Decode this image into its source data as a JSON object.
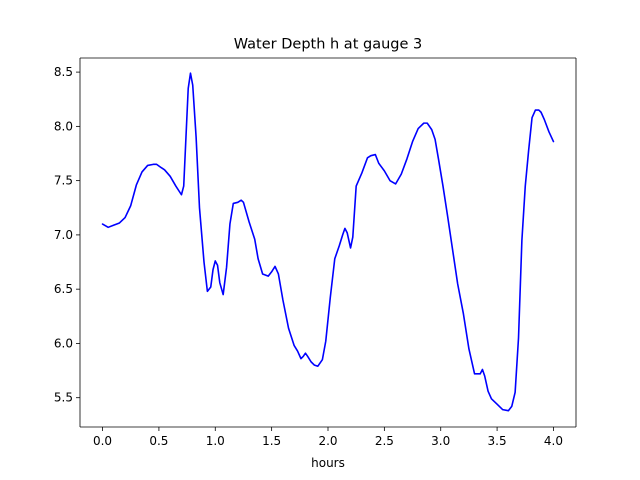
{
  "chart_data": {
    "type": "line",
    "title": "Water Depth h at gauge 3",
    "xlabel": "hours",
    "ylabel": "",
    "xlim": [
      -0.2,
      4.2
    ],
    "ylim": [
      5.23,
      8.63
    ],
    "x_ticks": [
      0.0,
      0.5,
      1.0,
      1.5,
      2.0,
      2.5,
      3.0,
      3.5,
      4.0
    ],
    "x_tick_labels": [
      "0.0",
      "0.5",
      "1.0",
      "1.5",
      "2.0",
      "2.5",
      "3.0",
      "3.5",
      "4.0"
    ],
    "y_ticks": [
      5.5,
      6.0,
      6.5,
      7.0,
      7.5,
      8.0,
      8.5
    ],
    "y_tick_labels": [
      "5.5",
      "6.0",
      "6.5",
      "7.0",
      "7.5",
      "8.0",
      "8.5"
    ],
    "grid": false,
    "legend": "none",
    "series": [
      {
        "color": "#0000ff",
        "x": [
          0.0,
          0.05,
          0.1,
          0.15,
          0.2,
          0.25,
          0.3,
          0.35,
          0.4,
          0.45,
          0.48,
          0.52,
          0.55,
          0.6,
          0.65,
          0.7,
          0.72,
          0.74,
          0.76,
          0.78,
          0.8,
          0.83,
          0.86,
          0.9,
          0.93,
          0.96,
          0.98,
          1.0,
          1.02,
          1.04,
          1.07,
          1.1,
          1.13,
          1.16,
          1.2,
          1.23,
          1.25,
          1.3,
          1.35,
          1.38,
          1.42,
          1.47,
          1.5,
          1.53,
          1.56,
          1.6,
          1.65,
          1.7,
          1.73,
          1.76,
          1.78,
          1.8,
          1.82,
          1.85,
          1.88,
          1.91,
          1.95,
          1.98,
          2.02,
          2.06,
          2.1,
          2.13,
          2.15,
          2.17,
          2.2,
          2.22,
          2.25,
          2.3,
          2.35,
          2.38,
          2.42,
          2.45,
          2.5,
          2.55,
          2.6,
          2.65,
          2.7,
          2.75,
          2.8,
          2.85,
          2.88,
          2.92,
          2.95,
          2.98,
          3.02,
          3.06,
          3.1,
          3.15,
          3.2,
          3.25,
          3.3,
          3.35,
          3.37,
          3.39,
          3.42,
          3.45,
          3.5,
          3.55,
          3.6,
          3.63,
          3.66,
          3.69,
          3.72,
          3.75,
          3.78,
          3.81,
          3.84,
          3.87,
          3.89,
          3.92,
          3.96,
          4.0
        ],
        "y": [
          7.1,
          7.07,
          7.09,
          7.11,
          7.16,
          7.27,
          7.46,
          7.58,
          7.64,
          7.65,
          7.65,
          7.62,
          7.6,
          7.54,
          7.45,
          7.37,
          7.45,
          7.9,
          8.35,
          8.49,
          8.38,
          7.9,
          7.25,
          6.75,
          6.48,
          6.52,
          6.68,
          6.76,
          6.72,
          6.56,
          6.45,
          6.7,
          7.1,
          7.29,
          7.3,
          7.32,
          7.3,
          7.12,
          6.96,
          6.78,
          6.64,
          6.62,
          6.66,
          6.71,
          6.64,
          6.4,
          6.14,
          5.98,
          5.93,
          5.86,
          5.88,
          5.91,
          5.88,
          5.83,
          5.8,
          5.79,
          5.85,
          6.02,
          6.42,
          6.78,
          6.9,
          7.0,
          7.06,
          7.02,
          6.88,
          6.98,
          7.45,
          7.57,
          7.71,
          7.73,
          7.74,
          7.66,
          7.59,
          7.5,
          7.47,
          7.56,
          7.7,
          7.86,
          7.98,
          8.03,
          8.03,
          7.97,
          7.88,
          7.7,
          7.45,
          7.18,
          6.9,
          6.55,
          6.28,
          5.95,
          5.72,
          5.72,
          5.76,
          5.7,
          5.56,
          5.49,
          5.44,
          5.39,
          5.38,
          5.42,
          5.55,
          6.05,
          6.95,
          7.45,
          7.78,
          8.08,
          8.15,
          8.15,
          8.13,
          8.06,
          7.95,
          7.86
        ]
      }
    ]
  }
}
